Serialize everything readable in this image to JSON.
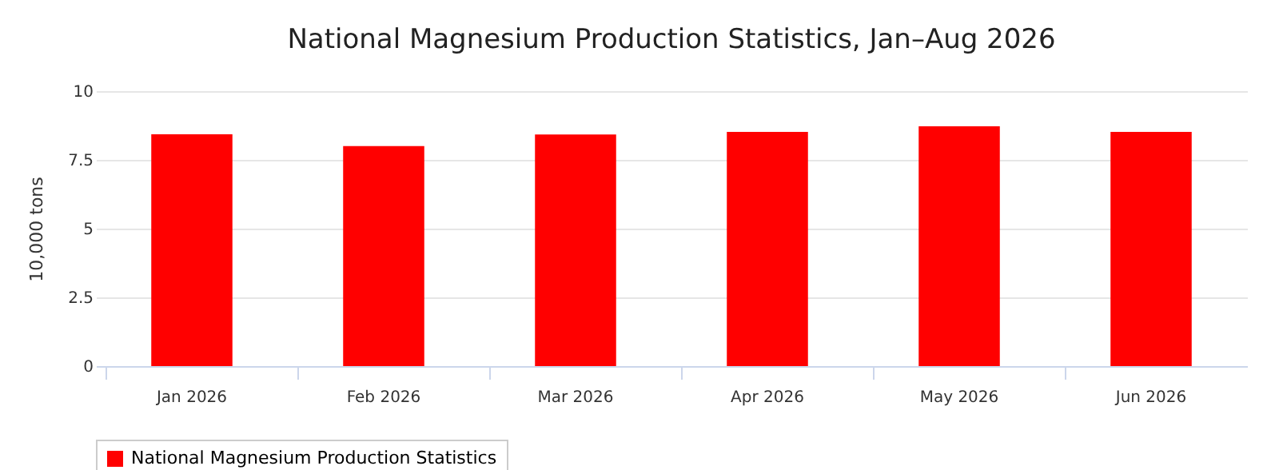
{
  "chart_data": {
    "type": "bar",
    "title": "National Magnesium Production Statistics, Jan–Aug 2026",
    "ylabel": "10,000 tons",
    "categories": [
      "Jan 2026",
      "Feb 2026",
      "Mar 2026",
      "Apr 2026",
      "May 2026",
      "Jun 2026"
    ],
    "series": [
      {
        "name": "National Magnesium Production Statistics",
        "color": "#ff0000",
        "values": [
          8.43,
          8.0,
          8.42,
          8.52,
          8.72,
          8.52
        ]
      }
    ],
    "ylim": [
      0,
      10
    ],
    "yticks": [
      0,
      {
        "value": 2.5,
        "label": "2.5"
      },
      5,
      {
        "value": 7.5,
        "label": "7.5"
      },
      10
    ],
    "grid": "y",
    "legend": "bottom"
  }
}
